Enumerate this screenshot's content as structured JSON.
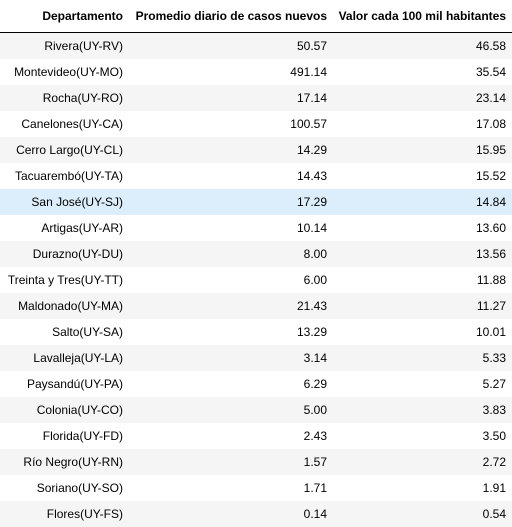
{
  "table": {
    "columns": [
      "Departamento",
      "Promedio diario de casos nuevos",
      "Valor cada 100 mil habitantes"
    ],
    "highlighted_row": 6,
    "rows": [
      {
        "departamento": "Rivera(UY-RV)",
        "promedio": "50.57",
        "valor": "46.58"
      },
      {
        "departamento": "Montevideo(UY-MO)",
        "promedio": "491.14",
        "valor": "35.54"
      },
      {
        "departamento": "Rocha(UY-RO)",
        "promedio": "17.14",
        "valor": "23.14"
      },
      {
        "departamento": "Canelones(UY-CA)",
        "promedio": "100.57",
        "valor": "17.08"
      },
      {
        "departamento": "Cerro Largo(UY-CL)",
        "promedio": "14.29",
        "valor": "15.95"
      },
      {
        "departamento": "Tacuarembó(UY-TA)",
        "promedio": "14.43",
        "valor": "15.52"
      },
      {
        "departamento": "San José(UY-SJ)",
        "promedio": "17.29",
        "valor": "14.84"
      },
      {
        "departamento": "Artigas(UY-AR)",
        "promedio": "10.14",
        "valor": "13.60"
      },
      {
        "departamento": "Durazno(UY-DU)",
        "promedio": "8.00",
        "valor": "13.56"
      },
      {
        "departamento": "Treinta y Tres(UY-TT)",
        "promedio": "6.00",
        "valor": "11.88"
      },
      {
        "departamento": "Maldonado(UY-MA)",
        "promedio": "21.43",
        "valor": "11.27"
      },
      {
        "departamento": "Salto(UY-SA)",
        "promedio": "13.29",
        "valor": "10.01"
      },
      {
        "departamento": "Lavalleja(UY-LA)",
        "promedio": "3.14",
        "valor": "5.33"
      },
      {
        "departamento": "Paysandú(UY-PA)",
        "promedio": "6.29",
        "valor": "5.27"
      },
      {
        "departamento": "Colonia(UY-CO)",
        "promedio": "5.00",
        "valor": "3.83"
      },
      {
        "departamento": "Florida(UY-FD)",
        "promedio": "2.43",
        "valor": "3.50"
      },
      {
        "departamento": "Río Negro(UY-RN)",
        "promedio": "1.57",
        "valor": "2.72"
      },
      {
        "departamento": "Soriano(UY-SO)",
        "promedio": "1.71",
        "valor": "1.91"
      },
      {
        "departamento": "Flores(UY-FS)",
        "promedio": "0.14",
        "valor": "0.54"
      }
    ]
  }
}
